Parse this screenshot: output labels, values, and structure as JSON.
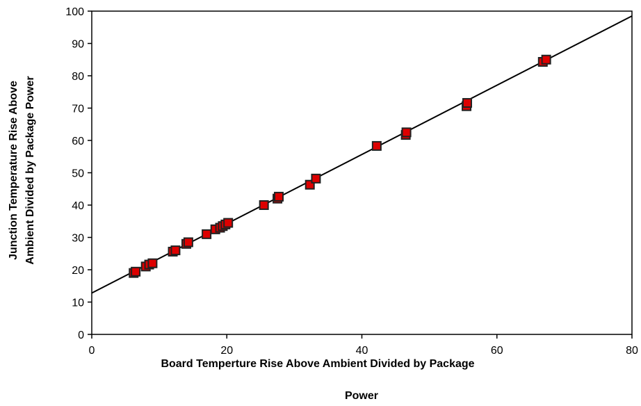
{
  "chart_data": {
    "type": "scatter",
    "xlabel_lines": [
      "Board Temperture Rise Above Ambient Divided by Package",
      "Power"
    ],
    "ylabel_lines": [
      "Junction Temperature Rise Above",
      "Ambient Divided by Package Power"
    ],
    "xlim": [
      0,
      80
    ],
    "ylim": [
      0,
      100
    ],
    "x_ticks": [
      0,
      20,
      40,
      60,
      80
    ],
    "y_ticks": [
      0,
      10,
      20,
      30,
      40,
      50,
      60,
      70,
      80,
      90,
      100
    ],
    "grid": false,
    "legend": "none",
    "marker": {
      "shape": "square",
      "fill": "#dd0000",
      "edge": "#222222"
    },
    "trendline": {
      "from": [
        0,
        12.8
      ],
      "to": [
        80,
        98.5
      ],
      "color": "#000000"
    },
    "points": [
      {
        "x": 6.2,
        "y": 19.0
      },
      {
        "x": 6.5,
        "y": 19.4
      },
      {
        "x": 8.0,
        "y": 21.0
      },
      {
        "x": 8.5,
        "y": 21.6
      },
      {
        "x": 9.0,
        "y": 22.0
      },
      {
        "x": 12.0,
        "y": 25.6
      },
      {
        "x": 12.4,
        "y": 26.0
      },
      {
        "x": 14.0,
        "y": 28.0
      },
      {
        "x": 14.3,
        "y": 28.5
      },
      {
        "x": 17.0,
        "y": 31.0
      },
      {
        "x": 18.3,
        "y": 32.5
      },
      {
        "x": 19.0,
        "y": 33.0
      },
      {
        "x": 19.4,
        "y": 33.5
      },
      {
        "x": 19.8,
        "y": 34.0
      },
      {
        "x": 20.2,
        "y": 34.5
      },
      {
        "x": 25.5,
        "y": 40.0
      },
      {
        "x": 27.5,
        "y": 42.0
      },
      {
        "x": 27.7,
        "y": 42.6
      },
      {
        "x": 32.3,
        "y": 46.3
      },
      {
        "x": 33.2,
        "y": 48.2
      },
      {
        "x": 42.2,
        "y": 58.3
      },
      {
        "x": 46.5,
        "y": 61.7
      },
      {
        "x": 46.6,
        "y": 62.5
      },
      {
        "x": 55.5,
        "y": 70.6
      },
      {
        "x": 55.6,
        "y": 71.6
      },
      {
        "x": 66.8,
        "y": 84.3
      },
      {
        "x": 67.3,
        "y": 85.0
      }
    ]
  }
}
